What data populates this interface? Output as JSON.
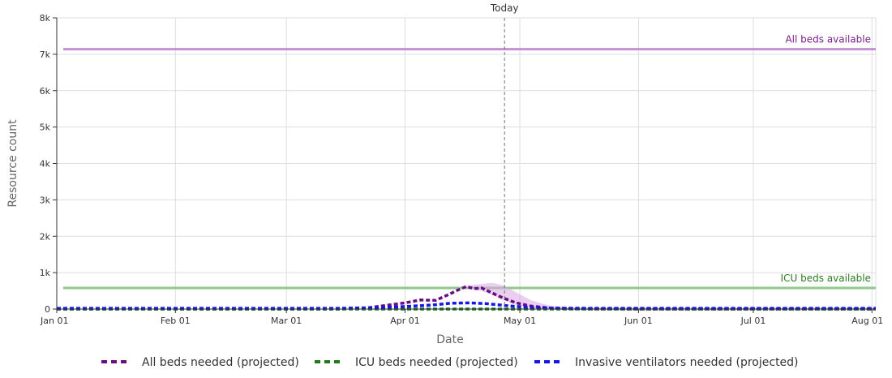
{
  "chart_data": {
    "type": "line",
    "xlabel": "Date",
    "ylabel": "Resource count",
    "x_range": [
      "2020-01-01",
      "2020-08-02"
    ],
    "ylim": [
      0,
      8000
    ],
    "grid": true,
    "legend_position": "bottom",
    "x_ticks": [
      {
        "date": "2020-01-01",
        "label": "Jan 01"
      },
      {
        "date": "2020-02-01",
        "label": "Feb 01"
      },
      {
        "date": "2020-03-01",
        "label": "Mar 01"
      },
      {
        "date": "2020-04-01",
        "label": "Apr 01"
      },
      {
        "date": "2020-05-01",
        "label": "May 01"
      },
      {
        "date": "2020-06-01",
        "label": "Jun 01"
      },
      {
        "date": "2020-07-01",
        "label": "Jul 01"
      },
      {
        "date": "2020-08-01",
        "label": "Aug 01"
      }
    ],
    "y_ticks": [
      {
        "value": 0,
        "label": "0"
      },
      {
        "value": 1000,
        "label": "1k"
      },
      {
        "value": 2000,
        "label": "2k"
      },
      {
        "value": 3000,
        "label": "3k"
      },
      {
        "value": 4000,
        "label": "4k"
      },
      {
        "value": 5000,
        "label": "5k"
      },
      {
        "value": 6000,
        "label": "6k"
      },
      {
        "value": 7000,
        "label": "7k"
      },
      {
        "value": 8000,
        "label": "8k"
      }
    ],
    "today": {
      "date": "2020-04-27",
      "label": "Today"
    },
    "reference_lines": [
      {
        "label": "All beds available",
        "value": 7140,
        "color": "#c58fd0",
        "label_color": "#7b1f8a"
      },
      {
        "label": "ICU beds available",
        "value": 580,
        "color": "#8cc98a",
        "label_color": "#2d7a1f"
      }
    ],
    "series": [
      {
        "name": "All beds needed (projected)",
        "color": "#6a0d83",
        "band_color": "#d9a8e3",
        "points": [
          {
            "x": "2020-01-01",
            "y": 0
          },
          {
            "x": "2020-03-15",
            "y": 0
          },
          {
            "x": "2020-03-22",
            "y": 30
          },
          {
            "x": "2020-03-27",
            "y": 100
          },
          {
            "x": "2020-04-01",
            "y": 170
          },
          {
            "x": "2020-04-05",
            "y": 250
          },
          {
            "x": "2020-04-09",
            "y": 240
          },
          {
            "x": "2020-04-12",
            "y": 380
          },
          {
            "x": "2020-04-15",
            "y": 530
          },
          {
            "x": "2020-04-17",
            "y": 620
          },
          {
            "x": "2020-04-19",
            "y": 560
          },
          {
            "x": "2020-04-21",
            "y": 580
          },
          {
            "x": "2020-04-23",
            "y": 480
          },
          {
            "x": "2020-04-25",
            "y": 380
          },
          {
            "x": "2020-04-27",
            "y": 290
          },
          {
            "x": "2020-04-30",
            "y": 170
          },
          {
            "x": "2020-05-04",
            "y": 80
          },
          {
            "x": "2020-05-09",
            "y": 25
          },
          {
            "x": "2020-05-16",
            "y": 5
          },
          {
            "x": "2020-06-01",
            "y": 0
          },
          {
            "x": "2020-08-02",
            "y": 0
          }
        ],
        "band": [
          {
            "x": "2020-04-17",
            "lo": 560,
            "hi": 640
          },
          {
            "x": "2020-04-21",
            "lo": 500,
            "hi": 690
          },
          {
            "x": "2020-04-24",
            "lo": 380,
            "hi": 720
          },
          {
            "x": "2020-04-27",
            "lo": 230,
            "hi": 640
          },
          {
            "x": "2020-04-30",
            "lo": 120,
            "hi": 460
          },
          {
            "x": "2020-05-04",
            "lo": 40,
            "hi": 240
          },
          {
            "x": "2020-05-09",
            "lo": 5,
            "hi": 90
          },
          {
            "x": "2020-05-14",
            "lo": 0,
            "hi": 30
          }
        ]
      },
      {
        "name": "ICU beds needed (projected)",
        "color": "#1f7a1a",
        "points": [
          {
            "x": "2020-01-01",
            "y": 0
          },
          {
            "x": "2020-08-02",
            "y": 0
          }
        ]
      },
      {
        "name": "Invasive ventilators needed (projected)",
        "color": "#1515e6",
        "points": [
          {
            "x": "2020-01-01",
            "y": 20
          },
          {
            "x": "2020-03-15",
            "y": 20
          },
          {
            "x": "2020-03-25",
            "y": 40
          },
          {
            "x": "2020-04-01",
            "y": 70
          },
          {
            "x": "2020-04-08",
            "y": 110
          },
          {
            "x": "2020-04-13",
            "y": 160
          },
          {
            "x": "2020-04-18",
            "y": 170
          },
          {
            "x": "2020-04-22",
            "y": 150
          },
          {
            "x": "2020-04-25",
            "y": 120
          },
          {
            "x": "2020-04-29",
            "y": 80
          },
          {
            "x": "2020-05-04",
            "y": 45
          },
          {
            "x": "2020-05-10",
            "y": 25
          },
          {
            "x": "2020-05-20",
            "y": 20
          },
          {
            "x": "2020-08-02",
            "y": 20
          }
        ]
      }
    ]
  }
}
